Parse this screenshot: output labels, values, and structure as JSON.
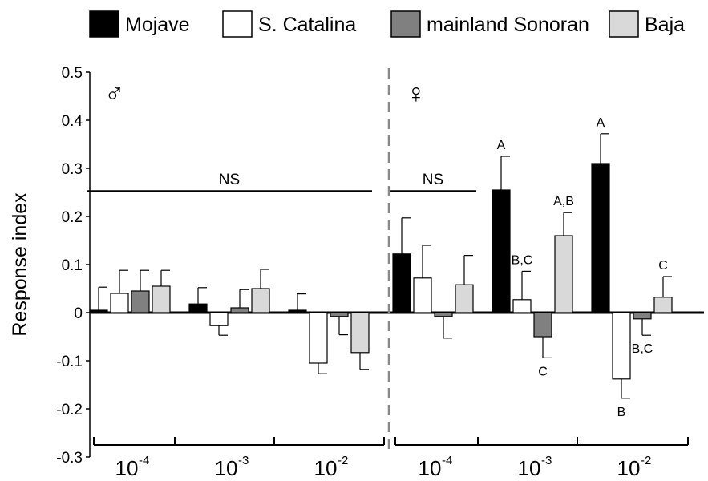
{
  "chart_data": {
    "type": "bar",
    "ylabel": "Response index",
    "ylim": [
      -0.3,
      0.5
    ],
    "yticks": [
      "-0.3",
      "-0.2",
      "-0.1",
      "0",
      "0.1",
      "0.2",
      "0.3",
      "0.4",
      "0.5"
    ],
    "legend_position": "top",
    "series": [
      {
        "name": "Mojave",
        "color": "#000000"
      },
      {
        "name": "S. Catalina",
        "color": "#ffffff"
      },
      {
        "name": "mainland Sonoran",
        "color": "#808080"
      },
      {
        "name": "Baja",
        "color": "#d9d9d9"
      }
    ],
    "panels": [
      {
        "sex_symbol": "♂",
        "groups": [
          {
            "base": "10",
            "exponent": "-4",
            "values": [
              0.005,
              0.04,
              0.045,
              0.055
            ],
            "errors": [
              0.048,
              0.048,
              0.043,
              0.033
            ],
            "letters": [
              "",
              "",
              "",
              ""
            ]
          },
          {
            "base": "10",
            "exponent": "-3",
            "values": [
              0.018,
              -0.027,
              0.01,
              0.05
            ],
            "errors": [
              0.034,
              0.02,
              0.038,
              0.04
            ],
            "letters": [
              "",
              "",
              "",
              ""
            ]
          },
          {
            "base": "10",
            "exponent": "-2",
            "values": [
              0.005,
              -0.105,
              -0.008,
              -0.083
            ],
            "errors": [
              0.034,
              0.022,
              0.038,
              0.035
            ],
            "letters": [
              "",
              "",
              "",
              ""
            ]
          }
        ],
        "ns_annotations": [
          {
            "text": "NS",
            "from_group": 0,
            "to_group": 2
          }
        ]
      },
      {
        "sex_symbol": "♀",
        "groups": [
          {
            "base": "10",
            "exponent": "-4",
            "values": [
              0.122,
              0.072,
              -0.008,
              0.058
            ],
            "errors": [
              0.075,
              0.068,
              0.045,
              0.061
            ],
            "letters": [
              "",
              "",
              "",
              ""
            ]
          },
          {
            "base": "10",
            "exponent": "-3",
            "values": [
              0.255,
              0.027,
              -0.05,
              0.16
            ],
            "errors": [
              0.07,
              0.059,
              0.044,
              0.048
            ],
            "letters": [
              "A",
              "B,C",
              "C",
              "A,B"
            ]
          },
          {
            "base": "10",
            "exponent": "-2",
            "values": [
              0.31,
              -0.138,
              -0.013,
              0.032
            ],
            "errors": [
              0.062,
              0.04,
              0.034,
              0.043
            ],
            "letters": [
              "A",
              "B",
              "B,C",
              "C"
            ]
          }
        ],
        "ns_annotations": [
          {
            "text": "NS",
            "from_group": 0,
            "to_group": 0
          }
        ]
      }
    ]
  },
  "colors": {
    "axis": "#000000",
    "divider": "#888888",
    "bar_stroke": "#000000"
  }
}
